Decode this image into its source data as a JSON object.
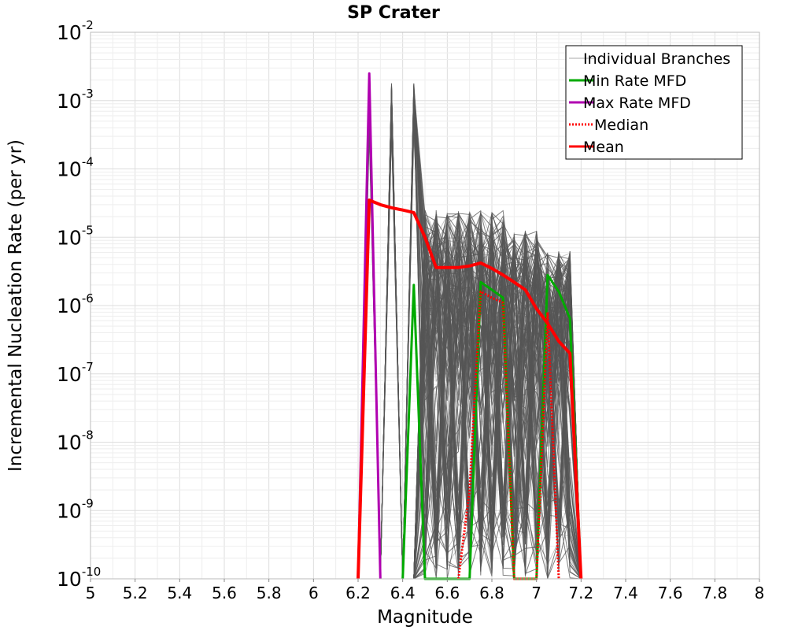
{
  "chart_data": {
    "type": "line",
    "title": "SP Crater",
    "xlabel": "Magnitude",
    "ylabel": "Incremental Nucleation Rate (per yr)",
    "xlim": [
      5,
      8
    ],
    "ylim": [
      1e-10,
      0.01
    ],
    "y_scale": "log",
    "grid": true,
    "legend_position": "top-right",
    "x_ticks": [
      "5",
      "5.2",
      "5.4",
      "5.6",
      "5.8",
      "6",
      "6.2",
      "6.4",
      "6.6",
      "6.8",
      "7",
      "7.2",
      "7.4",
      "7.6",
      "7.8",
      "8"
    ],
    "y_ticks": [
      {
        "base": "10",
        "exp": "-10"
      },
      {
        "base": "10",
        "exp": "-9"
      },
      {
        "base": "10",
        "exp": "-8"
      },
      {
        "base": "10",
        "exp": "-7"
      },
      {
        "base": "10",
        "exp": "-6"
      },
      {
        "base": "10",
        "exp": "-5"
      },
      {
        "base": "10",
        "exp": "-4"
      },
      {
        "base": "10",
        "exp": "-3"
      },
      {
        "base": "10",
        "exp": "-2"
      }
    ],
    "series": [
      {
        "name": "Individual Branches",
        "color": "#555555",
        "style": "thin",
        "x": [
          6.2,
          6.25,
          6.3,
          6.35,
          6.4,
          6.45,
          6.5,
          6.55,
          6.6,
          6.65,
          6.7,
          6.75,
          6.8,
          6.85,
          6.9,
          6.95,
          7.0,
          7.05,
          7.1,
          7.15,
          7.2
        ],
        "y_range_approx": "1e-10 to 2.5e-3 (many branches)"
      },
      {
        "name": "Min Rate MFD",
        "color": "#00aa00",
        "x": [
          6.4,
          6.45,
          6.5,
          6.7,
          6.75,
          6.8,
          6.85,
          6.9,
          7.0,
          7.05,
          7.1,
          7.15,
          7.2
        ],
        "y": [
          1e-10,
          2e-06,
          1e-10,
          1e-10,
          2.2e-06,
          1.7e-06,
          1.3e-06,
          1e-10,
          1e-10,
          2.8e-06,
          1.6e-06,
          6.5e-07,
          1e-10
        ]
      },
      {
        "name": "Max Rate MFD",
        "color": "#b000b0",
        "x": [
          6.2,
          6.25,
          6.3
        ],
        "y": [
          1e-10,
          0.0025,
          1e-10
        ]
      },
      {
        "name": "Median",
        "color": "#ff0000",
        "style": "dotted",
        "x": [
          6.65,
          6.7,
          6.75,
          6.8,
          6.85,
          6.9,
          7.0,
          7.05,
          7.1
        ],
        "y": [
          1e-10,
          2e-09,
          1.6e-06,
          1.3e-06,
          1.1e-06,
          1e-10,
          1e-10,
          8e-07,
          1e-10
        ]
      },
      {
        "name": "Mean",
        "color": "#ff0000",
        "x": [
          6.2,
          6.25,
          6.3,
          6.35,
          6.4,
          6.45,
          6.5,
          6.55,
          6.6,
          6.65,
          6.7,
          6.75,
          6.8,
          6.85,
          6.9,
          6.95,
          7.0,
          7.05,
          7.1,
          7.15,
          7.2
        ],
        "y": [
          1e-10,
          3.5e-05,
          3e-05,
          2.7e-05,
          2.5e-05,
          2.3e-05,
          1e-05,
          3.6e-06,
          3.6e-06,
          3.6e-06,
          3.8e-06,
          4.2e-06,
          3.5e-06,
          2.8e-06,
          2.2e-06,
          1.7e-06,
          9e-07,
          5.5e-07,
          3e-07,
          2e-07,
          1e-10
        ]
      }
    ]
  }
}
